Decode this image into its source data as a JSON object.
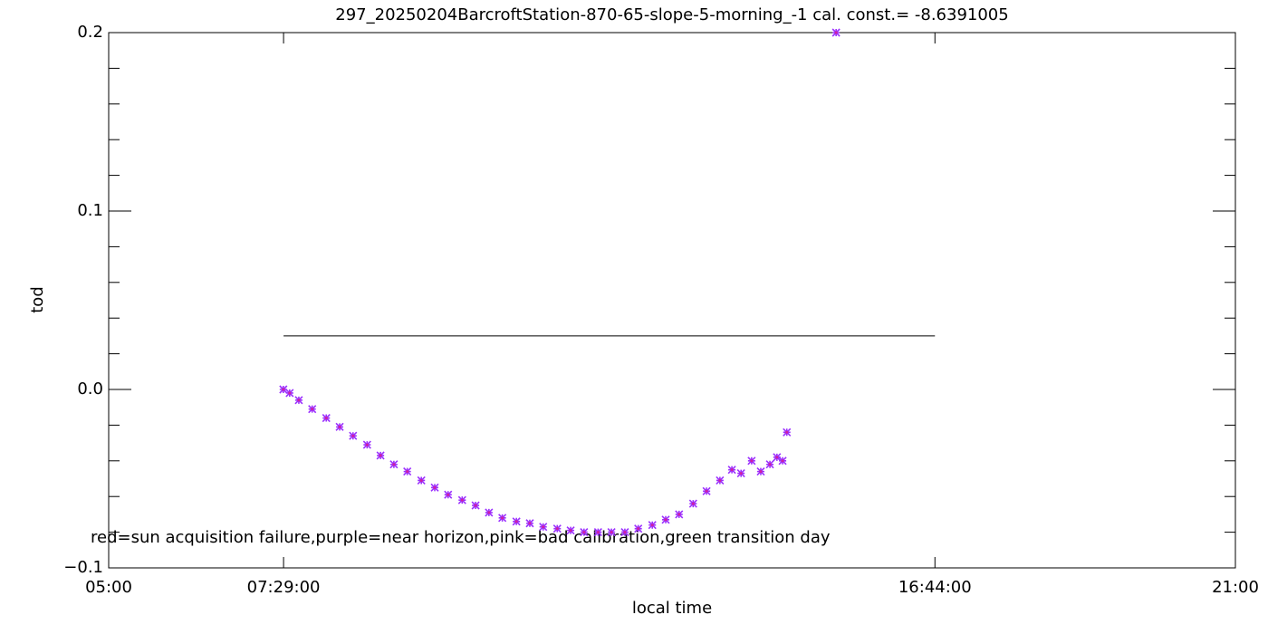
{
  "chart_data": {
    "type": "scatter",
    "title": "297_20250204BarcroftStation-870-65-slope-5-morning_-1 cal. const.= -8.6391005",
    "x_label": "local time",
    "y_label": "tod",
    "annotation": "red=sun acquisition failure,purple=near horizon,pink=bad calibration,green transition day",
    "xlim": [
      5,
      21
    ],
    "xticks": [
      {
        "value": 5,
        "label": "05:00"
      },
      {
        "value": 7.48333,
        "label": "07:29:00"
      },
      {
        "value": 16.73333,
        "label": "16:44:00"
      },
      {
        "value": 21,
        "label": "21:00"
      }
    ],
    "ylim": [
      -0.1,
      0.2
    ],
    "yticks": [
      {
        "value": -0.1,
        "label": "−0.1"
      },
      {
        "value": 0.0,
        "label": "0.0"
      },
      0.1,
      0.2
    ],
    "y_minor_per_major": 5,
    "reference_line": {
      "y": 0.03,
      "x": [
        7.48333,
        16.73333
      ],
      "color": "#000000"
    },
    "series": [
      {
        "color": "#9b30ff",
        "edge_color": "#d020a0",
        "marker": "asterisk",
        "x": [
          7.48,
          7.57,
          7.7,
          7.89,
          8.09,
          8.28,
          8.47,
          8.67,
          8.86,
          9.05,
          9.24,
          9.44,
          9.63,
          9.82,
          10.02,
          10.21,
          10.4,
          10.59,
          10.79,
          10.98,
          11.17,
          11.37,
          11.56,
          11.75,
          11.95,
          12.14,
          12.33,
          12.52,
          12.72,
          12.91,
          13.1,
          13.3,
          13.49,
          13.68,
          13.85,
          13.98,
          14.13,
          14.26,
          14.39,
          14.49,
          14.57,
          14.63,
          15.33
        ],
        "values": [
          0.0,
          -0.002,
          -0.006,
          -0.011,
          -0.016,
          -0.021,
          -0.026,
          -0.031,
          -0.037,
          -0.042,
          -0.046,
          -0.051,
          -0.055,
          -0.059,
          -0.062,
          -0.065,
          -0.069,
          -0.072,
          -0.074,
          -0.075,
          -0.077,
          -0.078,
          -0.079,
          -0.08,
          -0.08,
          -0.08,
          -0.08,
          -0.078,
          -0.076,
          -0.073,
          -0.07,
          -0.064,
          -0.057,
          -0.051,
          -0.045,
          -0.047,
          -0.04,
          -0.046,
          -0.042,
          -0.038,
          -0.04,
          -0.024,
          0.2
        ]
      }
    ]
  }
}
